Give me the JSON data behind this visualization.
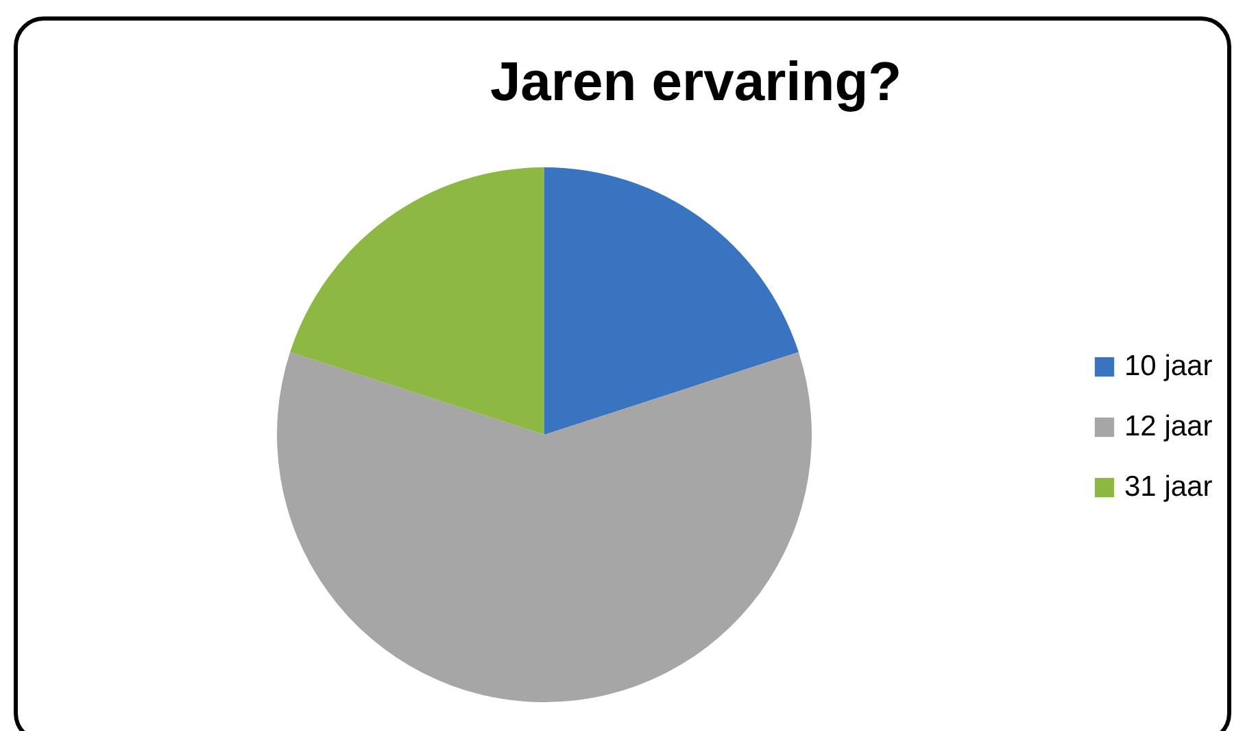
{
  "chart_data": {
    "type": "pie",
    "title": "Jaren ervaring?",
    "categories": [
      "10 jaar",
      "12 jaar",
      "31 jaar"
    ],
    "values": [
      20,
      60,
      20
    ],
    "colors": [
      "#3a73c0",
      "#a6a6a6",
      "#8db843"
    ],
    "legend": "right"
  }
}
